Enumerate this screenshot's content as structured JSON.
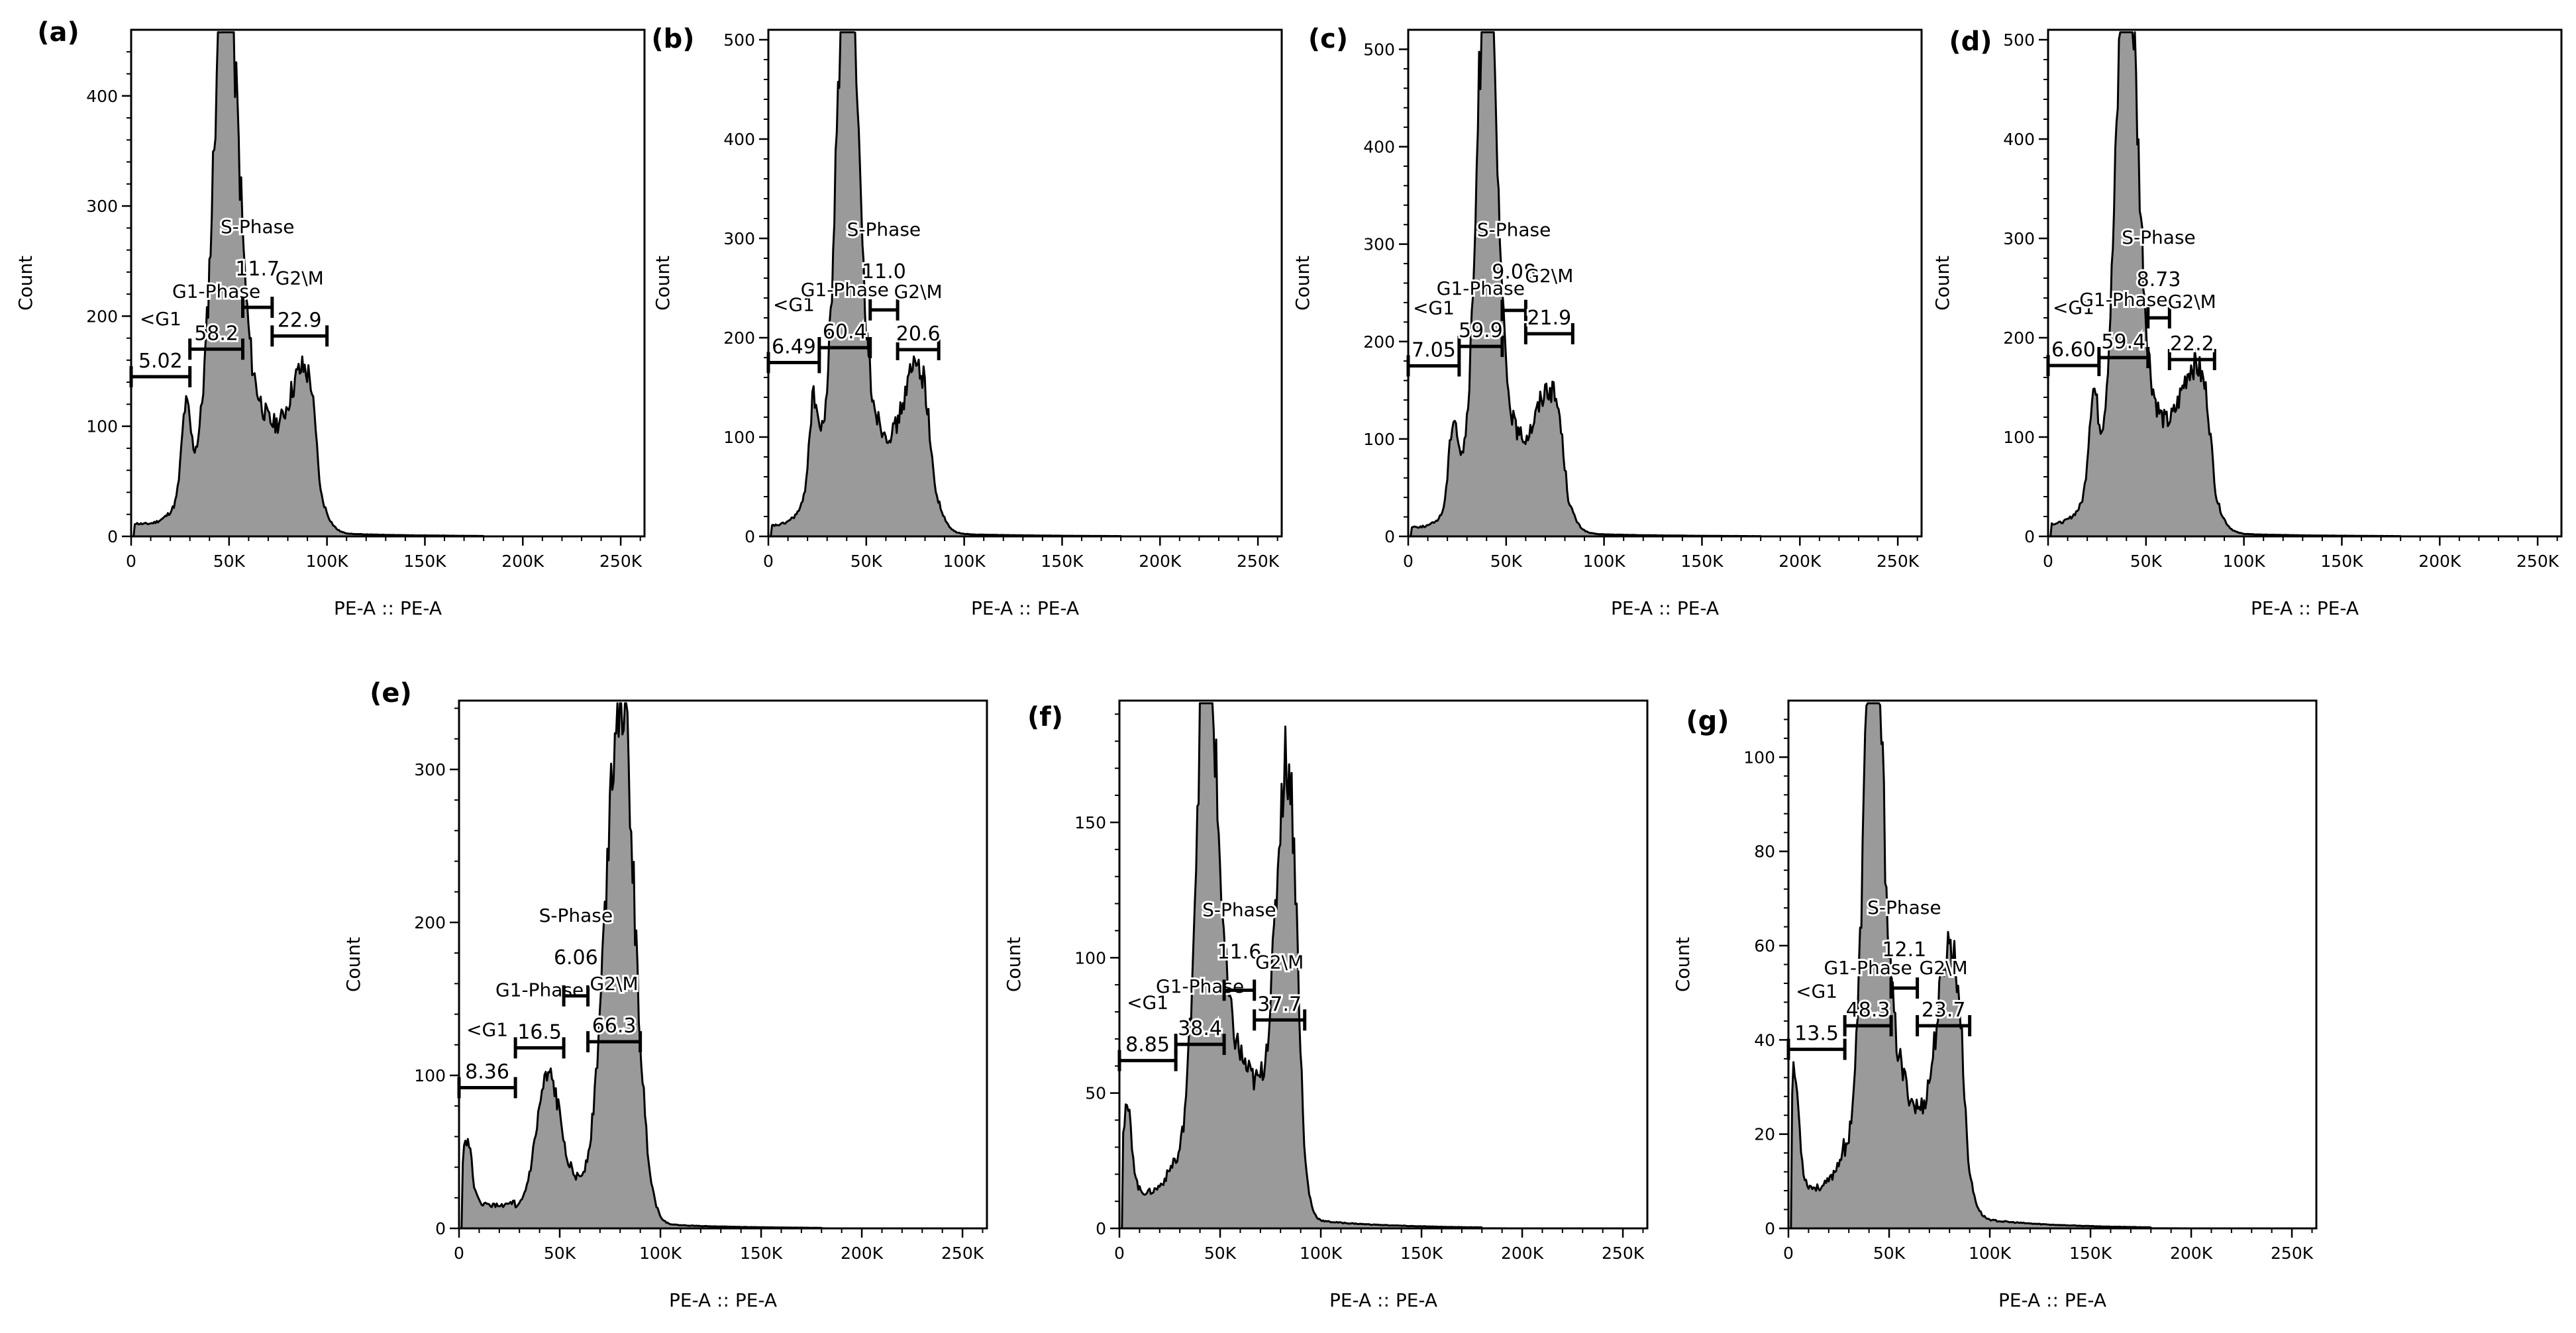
{
  "figure": {
    "colors": {
      "fill": "#9a9a9a",
      "line": "#000000",
      "axis": "#000000",
      "background": "#ffffff"
    }
  },
  "chart_data": [
    {
      "type": "area",
      "panel_label": "(a)",
      "xlabel": "PE-A :: PE-A",
      "ylabel": "Count",
      "xlim": [
        0,
        262144
      ],
      "ylim": [
        0,
        460
      ],
      "x_tick_labels": [
        "0",
        "50K",
        "100K",
        "150K",
        "200K",
        "250K"
      ],
      "y_ticks": [
        0,
        100,
        200,
        300,
        400
      ],
      "histogram": {
        "g1_center": 48000,
        "g1_height": 430,
        "g1_width": 5500,
        "g1_shoulder": 110,
        "g2_center": 88000,
        "g2_height": 80,
        "g2_width": 7000,
        "s_level": 70,
        "s_end": 97000,
        "debris_peak_x": 28000,
        "debris_height": 75,
        "debris_level": 12,
        "tail_level": 3
      },
      "gates": [
        {
          "name": "<G1",
          "value": "5.02",
          "x_start": 0,
          "x_end": 30000,
          "y": 145
        },
        {
          "name": "G1-Phase",
          "value": "58.2",
          "x_start": 30000,
          "x_end": 57000,
          "y": 170
        },
        {
          "name": "S-Phase",
          "value": "11.7",
          "x_start": 57000,
          "x_end": 72000,
          "y": 208
        },
        {
          "name": "G2\\M",
          "value": "22.9",
          "x_start": 72000,
          "x_end": 100000,
          "y": 182
        }
      ]
    },
    {
      "type": "area",
      "panel_label": "(b)",
      "xlabel": "PE-A :: PE-A",
      "ylabel": "Count",
      "xlim": [
        0,
        262144
      ],
      "ylim": [
        0,
        510
      ],
      "x_tick_labels": [
        "0",
        "50K",
        "100K",
        "150K",
        "200K",
        "250K"
      ],
      "y_ticks": [
        0,
        100,
        200,
        300,
        400,
        500
      ],
      "histogram": {
        "g1_center": 40000,
        "g1_height": 490,
        "g1_width": 5000,
        "g1_shoulder": 115,
        "g2_center": 76000,
        "g2_height": 110,
        "g2_width": 7000,
        "s_level": 60,
        "s_end": 85000,
        "debris_peak_x": 23000,
        "debris_height": 85,
        "debris_level": 10,
        "tail_level": 3
      },
      "gates": [
        {
          "name": "<G1",
          "value": "6.49",
          "x_start": 0,
          "x_end": 26000,
          "y": 175
        },
        {
          "name": "G1-Phase",
          "value": "60.4",
          "x_start": 26000,
          "x_end": 52000,
          "y": 190
        },
        {
          "name": "S-Phase",
          "value": "11.0",
          "x_start": 52000,
          "x_end": 66000,
          "y": 228
        },
        {
          "name": "G2\\M",
          "value": "20.6",
          "x_start": 66000,
          "x_end": 87000,
          "y": 188
        }
      ]
    },
    {
      "type": "area",
      "panel_label": "(c)",
      "xlabel": "PE-A :: PE-A",
      "ylabel": "Count",
      "xlim": [
        0,
        262144
      ],
      "ylim": [
        0,
        520
      ],
      "x_tick_labels": [
        "0",
        "50K",
        "100K",
        "150K",
        "200K",
        "250K"
      ],
      "y_ticks": [
        0,
        100,
        200,
        300,
        400,
        500
      ],
      "histogram": {
        "g1_center": 40000,
        "g1_height": 505,
        "g1_width": 4500,
        "g1_shoulder": 110,
        "g2_center": 72000,
        "g2_height": 95,
        "g2_width": 7000,
        "s_level": 55,
        "s_end": 82000,
        "debris_peak_x": 23000,
        "debris_height": 80,
        "debris_level": 10,
        "tail_level": 3
      },
      "gates": [
        {
          "name": "<G1",
          "value": "7.05",
          "x_start": 0,
          "x_end": 26000,
          "y": 175
        },
        {
          "name": "G1-Phase",
          "value": "59.9",
          "x_start": 26000,
          "x_end": 48000,
          "y": 195
        },
        {
          "name": "S-Phase",
          "value": "9.08",
          "x_start": 48000,
          "x_end": 60000,
          "y": 232
        },
        {
          "name": "G2\\M",
          "value": "21.9",
          "x_start": 60000,
          "x_end": 84000,
          "y": 208
        }
      ]
    },
    {
      "type": "area",
      "panel_label": "(d)",
      "xlabel": "PE-A :: PE-A",
      "ylabel": "Count",
      "xlim": [
        0,
        262144
      ],
      "ylim": [
        0,
        510
      ],
      "x_tick_labels": [
        "0",
        "50K",
        "100K",
        "150K",
        "200K",
        "250K"
      ],
      "y_ticks": [
        0,
        100,
        200,
        300,
        400,
        500
      ],
      "histogram": {
        "g1_center": 40000,
        "g1_height": 485,
        "g1_width": 5000,
        "g1_shoulder": 120,
        "g2_center": 75000,
        "g2_height": 105,
        "g2_width": 7500,
        "s_level": 65,
        "s_end": 86000,
        "debris_peak_x": 23000,
        "debris_height": 90,
        "debris_level": 12,
        "tail_level": 3
      },
      "gates": [
        {
          "name": "<G1",
          "value": "6.60",
          "x_start": 0,
          "x_end": 26000,
          "y": 172
        },
        {
          "name": "G1-Phase",
          "value": "59.4",
          "x_start": 26000,
          "x_end": 51000,
          "y": 180
        },
        {
          "name": "S-Phase",
          "value": "8.73",
          "x_start": 51000,
          "x_end": 62000,
          "y": 220
        },
        {
          "name": "G2\\M",
          "value": "22.2",
          "x_start": 62000,
          "x_end": 85000,
          "y": 178
        }
      ]
    },
    {
      "type": "area",
      "panel_label": "(e)",
      "xlabel": "PE-A :: PE-A",
      "ylabel": "Count",
      "xlim": [
        0,
        262144
      ],
      "ylim": [
        0,
        345
      ],
      "x_tick_labels": [
        "0",
        "50K",
        "100K",
        "150K",
        "200K",
        "250K"
      ],
      "y_ticks": [
        0,
        100,
        200,
        300
      ],
      "histogram": {
        "g1_center": 44000,
        "g1_height": 80,
        "g1_width": 5500,
        "g1_shoulder": 15,
        "g2_center": 80000,
        "g2_height": 335,
        "g2_width": 7000,
        "s_level": 18,
        "s_end": 90000,
        "debris_peak_x": 4000,
        "debris_height": 40,
        "debris_level": 22,
        "tail_level": 3
      },
      "gates": [
        {
          "name": "<G1",
          "value": "8.36",
          "x_start": 0,
          "x_end": 28000,
          "y": 92
        },
        {
          "name": "G1-Phase",
          "value": "16.5",
          "x_start": 28000,
          "x_end": 52000,
          "y": 118
        },
        {
          "name": "S-Phase",
          "value": "6.06",
          "x_start": 52000,
          "x_end": 64000,
          "y": 152
        },
        {
          "name": "G2\\M",
          "value": "66.3",
          "x_start": 64000,
          "x_end": 90000,
          "y": 122
        }
      ]
    },
    {
      "type": "area",
      "panel_label": "(f)",
      "xlabel": "PE-A :: PE-A",
      "ylabel": "Count",
      "xlim": [
        0,
        262144
      ],
      "ylim": [
        0,
        195
      ],
      "x_tick_labels": [
        "0",
        "50K",
        "100K",
        "150K",
        "200K",
        "250K"
      ],
      "y_ticks": [
        0,
        50,
        100,
        150
      ],
      "histogram": {
        "g1_center": 43000,
        "g1_height": 178,
        "g1_width": 4500,
        "g1_shoulder": 45,
        "g2_center": 83000,
        "g2_height": 125,
        "g2_width": 5000,
        "s_level": 48,
        "s_end": 92000,
        "debris_peak_x": 4000,
        "debris_height": 28,
        "debris_level": 18,
        "tail_level": 3
      },
      "gates": [
        {
          "name": "<G1",
          "value": "8.85",
          "x_start": 0,
          "x_end": 28000,
          "y": 62
        },
        {
          "name": "G1-Phase",
          "value": "38.4",
          "x_start": 28000,
          "x_end": 52000,
          "y": 68
        },
        {
          "name": "S-Phase",
          "value": "11.6",
          "x_start": 52000,
          "x_end": 67000,
          "y": 88
        },
        {
          "name": "G2\\M",
          "value": "37.7",
          "x_start": 67000,
          "x_end": 92000,
          "y": 77
        }
      ]
    },
    {
      "type": "area",
      "panel_label": "(g)",
      "xlabel": "PE-A :: PE-A",
      "ylabel": "Count",
      "xlim": [
        0,
        262144
      ],
      "ylim": [
        0,
        112
      ],
      "x_tick_labels": [
        "0",
        "50K",
        "100K",
        "150K",
        "200K",
        "250K"
      ],
      "y_ticks": [
        0,
        20,
        40,
        60,
        80,
        100
      ],
      "histogram": {
        "g1_center": 42000,
        "g1_height": 108,
        "g1_width": 4200,
        "g1_shoulder": 30,
        "g2_center": 80000,
        "g2_height": 40,
        "g2_width": 6000,
        "s_level": 20,
        "s_end": 90000,
        "debris_peak_x": 3000,
        "debris_height": 22,
        "debris_level": 12,
        "tail_level": 2
      },
      "gates": [
        {
          "name": "<G1",
          "value": "13.5",
          "x_start": 0,
          "x_end": 28000,
          "y": 38
        },
        {
          "name": "G1-Phase",
          "value": "48.3",
          "x_start": 28000,
          "x_end": 51000,
          "y": 43
        },
        {
          "name": "S-Phase",
          "value": "12.1",
          "x_start": 51000,
          "x_end": 64000,
          "y": 51
        },
        {
          "name": "G2\\M",
          "value": "23.7",
          "x_start": 64000,
          "x_end": 90000,
          "y": 43
        }
      ]
    }
  ]
}
